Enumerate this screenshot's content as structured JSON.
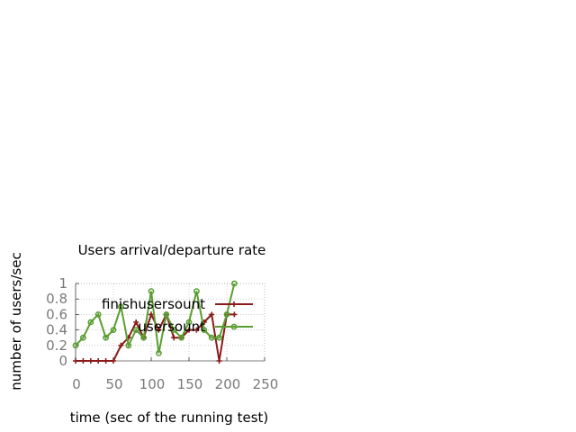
{
  "chart_data": {
    "type": "line",
    "title": "Users arrival/departure rate",
    "xlabel": "time (sec of the running test)",
    "ylabel": "number of users/sec",
    "xlim": [
      0,
      250
    ],
    "ylim": [
      0,
      1
    ],
    "xticks": [
      0,
      50,
      100,
      150,
      200,
      250
    ],
    "yticks": [
      0,
      0.2,
      0.4,
      0.6,
      0.8,
      1
    ],
    "ytick_labels": [
      "0",
      "0.2",
      "0.4",
      "0.6",
      "0.8",
      "1"
    ],
    "grid": true,
    "legend_position": "top-right",
    "series": [
      {
        "name": "finish_users_count",
        "legend_text": "finishusersount",
        "color": "#8b1a1a",
        "marker": "plus",
        "x": [
          0,
          10,
          20,
          30,
          40,
          50,
          60,
          70,
          80,
          90,
          100,
          110,
          120,
          130,
          140,
          150,
          160,
          170,
          180,
          190,
          200,
          210
        ],
        "y": [
          0,
          0,
          0,
          0,
          0,
          0,
          0.2,
          0.3,
          0.5,
          0.3,
          0.6,
          0.4,
          0.6,
          0.3,
          0.3,
          0.4,
          0.4,
          0.5,
          0.6,
          0,
          0.6,
          0.6
        ]
      },
      {
        "name": "users_count",
        "legend_text": "usersount",
        "color": "#5a9e32",
        "marker": "circle",
        "x": [
          0,
          10,
          20,
          30,
          40,
          50,
          60,
          70,
          80,
          90,
          100,
          110,
          120,
          130,
          140,
          150,
          160,
          170,
          180,
          190,
          200,
          210
        ],
        "y": [
          0.2,
          0.3,
          0.5,
          0.6,
          0.3,
          0.4,
          0.7,
          0.2,
          0.4,
          0.3,
          0.9,
          0.1,
          0.6,
          0.4,
          0.3,
          0.5,
          0.9,
          0.4,
          0.3,
          0.3,
          0.6,
          1.0
        ]
      }
    ]
  }
}
